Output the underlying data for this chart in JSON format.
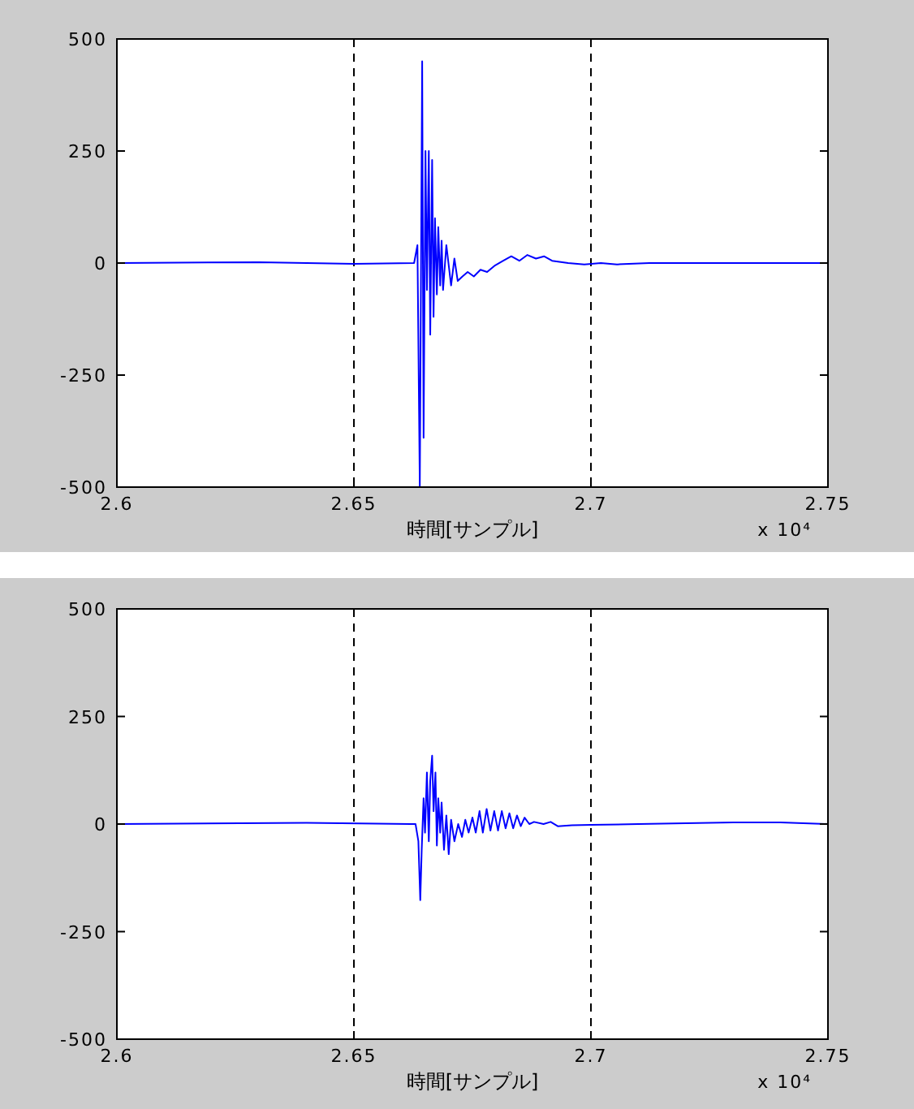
{
  "chart_data": [
    {
      "type": "line",
      "xlabel": "時間[サンプル]",
      "annotations": [
        "x 10⁴"
      ],
      "x": [
        2.6,
        2.63,
        2.65,
        2.6627,
        2.6634,
        2.6639,
        2.6644,
        2.6647,
        2.6651,
        2.6654,
        2.6658,
        2.6661,
        2.6665,
        2.6668,
        2.6671,
        2.6675,
        2.6678,
        2.6682,
        2.6685,
        2.6688,
        2.6695,
        2.6705,
        2.6712,
        2.6719,
        2.6729,
        2.674,
        2.6753,
        2.6767,
        2.6781,
        2.6798,
        2.6815,
        2.6832,
        2.6849,
        2.6866,
        2.6884,
        2.6901,
        2.6918,
        2.6952,
        2.6986,
        2.7021,
        2.7055,
        2.7123,
        2.7295,
        2.75
      ],
      "series": [
        {
          "color": "#0000ff",
          "values": [
            0,
            2,
            -2,
            0,
            40,
            -500,
            450,
            -390,
            250,
            -60,
            250,
            -160,
            230,
            -120,
            100,
            -70,
            80,
            -50,
            50,
            -60,
            40,
            -50,
            10,
            -40,
            -30,
            -20,
            -30,
            -15,
            -20,
            -5,
            5,
            15,
            5,
            18,
            10,
            15,
            5,
            0,
            -3,
            0,
            -3,
            0,
            0,
            0
          ]
        }
      ],
      "xlim": [
        2.6,
        2.75
      ],
      "ylim": [
        -500,
        500
      ],
      "xticks": [
        2.6,
        2.65,
        2.7,
        2.75
      ],
      "yticks": [
        -500,
        -250,
        0,
        250,
        500
      ],
      "ref_lines": [
        {
          "axis": "x",
          "value": 2.65,
          "color": "#000000",
          "line_style": "dashed"
        },
        {
          "axis": "x",
          "value": 2.7,
          "color": "#000000",
          "line_style": "dashed"
        }
      ],
      "line_style": "solid",
      "grid": false
    },
    {
      "type": "line",
      "xlabel": "時間[サンプル]",
      "annotations": [
        "x 10⁴"
      ],
      "x": [
        2.6,
        2.64,
        2.662,
        2.663,
        2.6636,
        2.664,
        2.6643,
        2.6647,
        2.665,
        2.6654,
        2.6658,
        2.6661,
        2.6665,
        2.6668,
        2.6672,
        2.6675,
        2.6678,
        2.6682,
        2.6685,
        2.669,
        2.6695,
        2.67,
        2.6705,
        2.6712,
        2.672,
        2.6728,
        2.6735,
        2.6742,
        2.675,
        2.6757,
        2.6765,
        2.6772,
        2.678,
        2.6788,
        2.6796,
        2.6804,
        2.6812,
        2.682,
        2.6828,
        2.6836,
        2.6844,
        2.6852,
        2.686,
        2.687,
        2.688,
        2.69,
        2.6915,
        2.693,
        2.696,
        2.7,
        2.71,
        2.72,
        2.73,
        2.74,
        2.75
      ],
      "series": [
        {
          "color": "#0000ff",
          "values": [
            0,
            3,
            0,
            0,
            -40,
            -177,
            -60,
            60,
            -20,
            120,
            -40,
            100,
            159,
            30,
            120,
            -50,
            60,
            -20,
            50,
            -60,
            20,
            -70,
            10,
            -40,
            0,
            -30,
            10,
            -20,
            15,
            -20,
            30,
            -20,
            35,
            -15,
            30,
            -15,
            30,
            -10,
            25,
            -10,
            20,
            -5,
            15,
            0,
            5,
            0,
            5,
            -5,
            -3,
            -2,
            0,
            2,
            4,
            4,
            0
          ]
        }
      ],
      "xlim": [
        2.6,
        2.75
      ],
      "ylim": [
        -500,
        500
      ],
      "xticks": [
        2.6,
        2.65,
        2.7,
        2.75
      ],
      "yticks": [
        -500,
        -250,
        0,
        250,
        500
      ],
      "ref_lines": [
        {
          "axis": "x",
          "value": 2.65,
          "color": "#000000",
          "line_style": "dashed"
        },
        {
          "axis": "x",
          "value": 2.7,
          "color": "#000000",
          "line_style": "dashed"
        }
      ],
      "line_style": "solid",
      "grid": false
    }
  ]
}
